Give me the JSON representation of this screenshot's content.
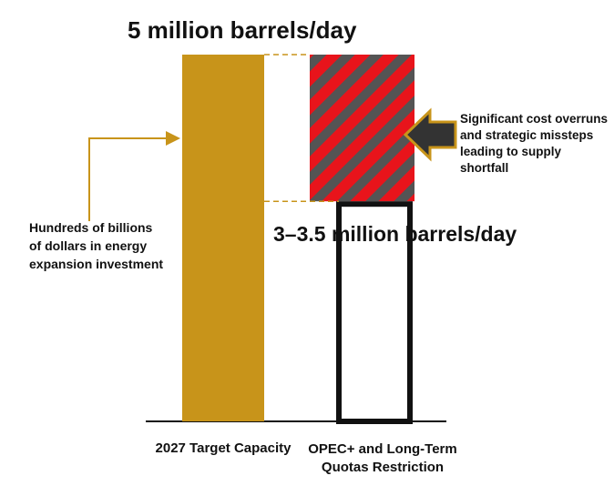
{
  "chart_data": {
    "type": "bar",
    "categories": [
      "2027 Target Capacity",
      "OPEC+ and Long-Term Quotas Restriction"
    ],
    "values": [
      5,
      3
    ],
    "value_labels": [
      "5 million barrels/day",
      "3–3.5 million barrels/day"
    ],
    "colors": [
      "#c8941a",
      "#111111"
    ],
    "shortfall_color": "#e8141b",
    "annotations": [
      "Hundreds of billions of dollars in energy expansion investment",
      "Significant cost overruns and strategic missteps leading to supply shortfall"
    ]
  }
}
